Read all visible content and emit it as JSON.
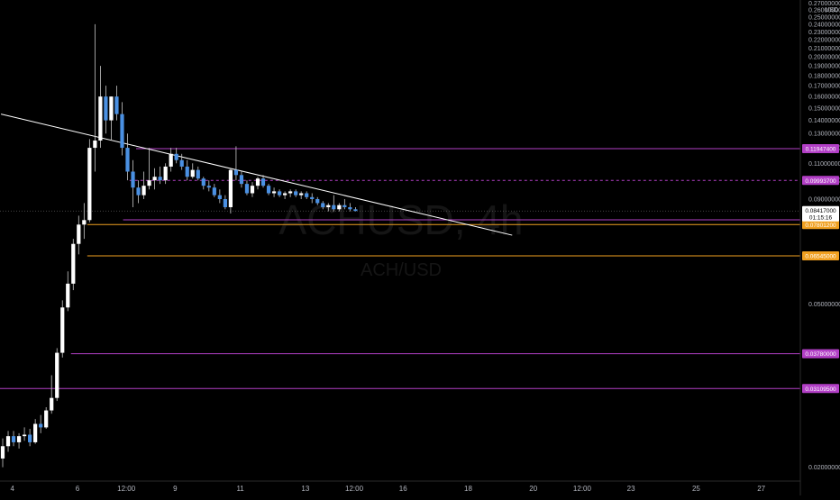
{
  "chart_data": {
    "type": "candlestick",
    "title": "",
    "watermark": {
      "symbol": "ACHUSD, 4h",
      "pair": "ACH/USD"
    },
    "currency_label": "USD",
    "y_axis": {
      "scale": "log",
      "ylim": [
        0.0185,
        0.275
      ],
      "ticks": [
        "0.02000000",
        "0.05000000",
        "0.09000000",
        "0.10000000",
        "0.11000000",
        "0.12000000",
        "0.13000000",
        "0.14000000",
        "0.15000000",
        "0.16000000",
        "0.17000000",
        "0.18000000",
        "0.19000000",
        "0.20000000",
        "0.21000000",
        "0.22000000",
        "0.23000000",
        "0.24000000",
        "0.25000000",
        "0.26000000",
        "0.27000000"
      ]
    },
    "x_axis": {
      "labels": [
        {
          "label": "4",
          "t": 3.0
        },
        {
          "label": "6",
          "t": 5.0
        },
        {
          "label": "12:00",
          "t": 6.5
        },
        {
          "label": "9",
          "t": 8.0
        },
        {
          "label": "11",
          "t": 10.0
        },
        {
          "label": "13",
          "t": 12.0
        },
        {
          "label": "12:00",
          "t": 13.5
        },
        {
          "label": "16",
          "t": 15.0
        },
        {
          "label": "18",
          "t": 17.0
        },
        {
          "label": "20",
          "t": 19.0
        },
        {
          "label": "12:00",
          "t": 20.5
        },
        {
          "label": "23",
          "t": 22.0
        },
        {
          "label": "25",
          "t": 24.0
        },
        {
          "label": "27",
          "t": 26.0
        }
      ],
      "xlim": [
        2.62,
        27.2
      ]
    },
    "up_color": "#ffffff",
    "down_color": "#4a90e2",
    "candles": [
      [
        0.021,
        0.0235,
        0.02,
        0.0225
      ],
      [
        0.0225,
        0.0245,
        0.0218,
        0.0238
      ],
      [
        0.0238,
        0.0245,
        0.0225,
        0.023
      ],
      [
        0.023,
        0.0242,
        0.0222,
        0.0238
      ],
      [
        0.0238,
        0.025,
        0.0232,
        0.024
      ],
      [
        0.024,
        0.0248,
        0.0225,
        0.023
      ],
      [
        0.023,
        0.0262,
        0.0228,
        0.0255
      ],
      [
        0.0255,
        0.0268,
        0.0242,
        0.025
      ],
      [
        0.025,
        0.028,
        0.0248,
        0.0275
      ],
      [
        0.0275,
        0.0335,
        0.027,
        0.0295
      ],
      [
        0.0295,
        0.039,
        0.029,
        0.038
      ],
      [
        0.038,
        0.051,
        0.037,
        0.049
      ],
      [
        0.049,
        0.06,
        0.048,
        0.056
      ],
      [
        0.056,
        0.072,
        0.054,
        0.07
      ],
      [
        0.07,
        0.082,
        0.066,
        0.078
      ],
      [
        0.078,
        0.088,
        0.072,
        0.08
      ],
      [
        0.08,
        0.126,
        0.079,
        0.12
      ],
      [
        0.12,
        0.24,
        0.105,
        0.125
      ],
      [
        0.125,
        0.19,
        0.12,
        0.16
      ],
      [
        0.16,
        0.17,
        0.13,
        0.14
      ],
      [
        0.14,
        0.16,
        0.125,
        0.16
      ],
      [
        0.16,
        0.17,
        0.14,
        0.145
      ],
      [
        0.145,
        0.155,
        0.115,
        0.12
      ],
      [
        0.12,
        0.13,
        0.1,
        0.105
      ],
      [
        0.105,
        0.112,
        0.086,
        0.096
      ],
      [
        0.096,
        0.1,
        0.088,
        0.092
      ],
      [
        0.092,
        0.105,
        0.09,
        0.097
      ],
      [
        0.097,
        0.12,
        0.095,
        0.1
      ],
      [
        0.1,
        0.107,
        0.095,
        0.102
      ],
      [
        0.102,
        0.108,
        0.098,
        0.1
      ],
      [
        0.1,
        0.11,
        0.098,
        0.108
      ],
      [
        0.108,
        0.12,
        0.105,
        0.116
      ],
      [
        0.116,
        0.12,
        0.11,
        0.112
      ],
      [
        0.112,
        0.116,
        0.106,
        0.108
      ],
      [
        0.108,
        0.112,
        0.1,
        0.102
      ],
      [
        0.102,
        0.11,
        0.101,
        0.106
      ],
      [
        0.106,
        0.108,
        0.1,
        0.101
      ],
      [
        0.101,
        0.102,
        0.095,
        0.097
      ],
      [
        0.097,
        0.1,
        0.094,
        0.096
      ],
      [
        0.096,
        0.098,
        0.091,
        0.092
      ],
      [
        0.092,
        0.095,
        0.088,
        0.09
      ],
      [
        0.09,
        0.092,
        0.085,
        0.086
      ],
      [
        0.086,
        0.107,
        0.083,
        0.106
      ],
      [
        0.106,
        0.121,
        0.1,
        0.103
      ],
      [
        0.103,
        0.105,
        0.096,
        0.098
      ],
      [
        0.098,
        0.1,
        0.092,
        0.093
      ],
      [
        0.093,
        0.099,
        0.091,
        0.097
      ],
      [
        0.097,
        0.102,
        0.095,
        0.101
      ],
      [
        0.101,
        0.103,
        0.096,
        0.097
      ],
      [
        0.097,
        0.098,
        0.092,
        0.093
      ],
      [
        0.093,
        0.096,
        0.091,
        0.094
      ],
      [
        0.094,
        0.095,
        0.091,
        0.092
      ],
      [
        0.092,
        0.094,
        0.09,
        0.093
      ],
      [
        0.093,
        0.095,
        0.091,
        0.094
      ],
      [
        0.094,
        0.095,
        0.091,
        0.092
      ],
      [
        0.092,
        0.094,
        0.09,
        0.093
      ],
      [
        0.093,
        0.094,
        0.09,
        0.091
      ],
      [
        0.091,
        0.093,
        0.088,
        0.09
      ],
      [
        0.09,
        0.091,
        0.087,
        0.088
      ],
      [
        0.088,
        0.089,
        0.085,
        0.086
      ],
      [
        0.086,
        0.088,
        0.084,
        0.087
      ],
      [
        0.087,
        0.092,
        0.084,
        0.085
      ],
      [
        0.085,
        0.088,
        0.084,
        0.087
      ],
      [
        0.087,
        0.09,
        0.085,
        0.086
      ],
      [
        0.086,
        0.088,
        0.084,
        0.085
      ],
      [
        0.085,
        0.086,
        0.084,
        0.0842
      ]
    ],
    "trendline": {
      "p1": [
        2.65,
        0.145
      ],
      "p2": [
        18.35,
        0.0735
      ],
      "color": "#ffffff"
    },
    "horizontal_levels": [
      {
        "value": 0.119474,
        "label": "0.11947400",
        "color": "#b23fc6",
        "start_t": 6.8
      },
      {
        "value": 0.099937,
        "label": "0.09993700",
        "color": "#b23fc6",
        "dashed": true,
        "start_t": 6.6
      },
      {
        "value": 0.08012385,
        "label": "0.08012385",
        "color": "#b23fc6",
        "start_t": 6.4
      },
      {
        "value": 0.078012,
        "label": "0.07801200",
        "color": "#f0a020",
        "start_t": 5.3
      },
      {
        "value": 0.06545,
        "label": "0.06545000",
        "color": "#f0a020",
        "start_t": 5.3
      },
      {
        "value": 0.0378,
        "label": "0.03780000",
        "color": "#b23fc6",
        "start_t": 4.8
      },
      {
        "value": 0.031095,
        "label": "0.03109500",
        "color": "#b23fc6",
        "start_t": 2.62
      }
    ],
    "current_price": {
      "value": 0.08417,
      "label": "0.08417000",
      "countdown": "01:15:16"
    }
  }
}
